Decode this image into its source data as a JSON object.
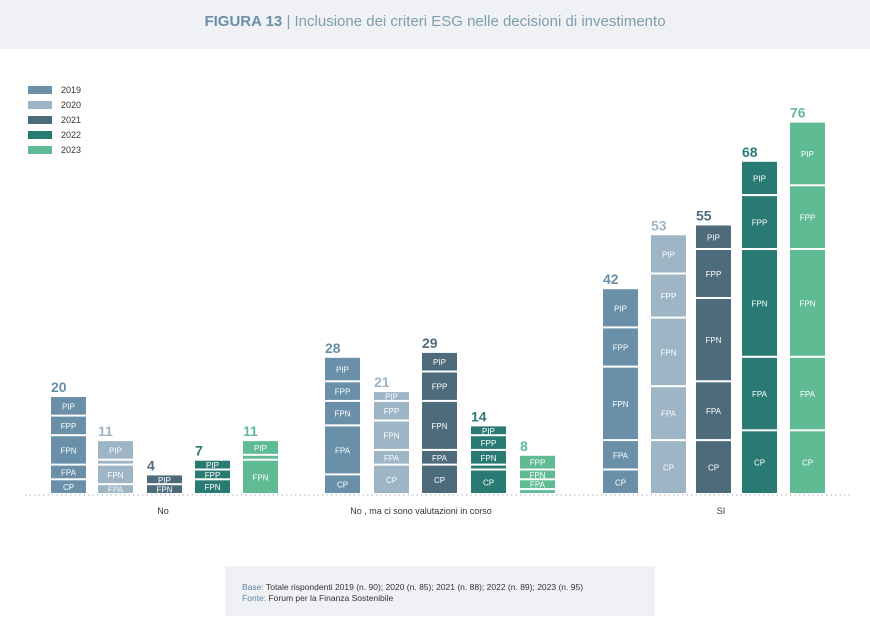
{
  "header": {
    "figure": "FIGURA 13",
    "separator": "|",
    "title": "Inclusione dei criteri ESG nelle decisioni di investimento"
  },
  "footer": {
    "base_label": "Base:",
    "base_text": "Totale rispondenti 2019 (n. 90); 2020 (n. 85); 2021 (n. 88); 2022 (n. 89); 2023 (n. 95)",
    "source_label": "Fonte:",
    "source_text": "Forum per la Finanza Sostenibile"
  },
  "chart_data": {
    "type": "bar",
    "stacked": true,
    "title": "Inclusione dei criteri ESG nelle decisioni di investimento",
    "legend_position": "top-left",
    "grid": false,
    "categories": [
      "No",
      "No , ma ci sono valutazioni in corso",
      "SI"
    ],
    "segments": [
      "CP",
      "FPA",
      "FPN",
      "FPP",
      "PIP"
    ],
    "series": [
      {
        "name": "2019",
        "color": "#6a8fa8",
        "totals": [
          20,
          28,
          42
        ],
        "stacks": [
          {
            "CP": 3,
            "FPA": 3,
            "FPN": 6,
            "FPP": 4,
            "PIP": 4
          },
          {
            "CP": 4,
            "FPA": 10,
            "FPN": 5,
            "FPP": 4,
            "PIP": 5
          },
          {
            "CP": 5,
            "FPA": 6,
            "FPN": 15,
            "FPP": 8,
            "PIP": 8
          }
        ]
      },
      {
        "name": "2020",
        "color": "#9db5c5",
        "totals": [
          11,
          21,
          53
        ],
        "stacks": [
          {
            "CP": 0,
            "FPA": 2,
            "FPN": 4,
            "FPP": 1,
            "PIP": 4
          },
          {
            "CP": 6,
            "FPA": 3,
            "FPN": 6,
            "FPP": 4,
            "PIP": 2
          },
          {
            "CP": 11,
            "FPA": 11,
            "FPN": 14,
            "FPP": 9,
            "PIP": 8
          }
        ]
      },
      {
        "name": "2021",
        "color": "#4e6b7b",
        "totals": [
          4,
          29,
          55
        ],
        "stacks": [
          {
            "CP": 0,
            "FPA": 0,
            "FPN": 2,
            "FPP": 0,
            "PIP": 2
          },
          {
            "CP": 6,
            "FPA": 3,
            "FPN": 10,
            "FPP": 6,
            "PIP": 4
          },
          {
            "CP": 11,
            "FPA": 12,
            "FPN": 17,
            "FPP": 10,
            "PIP": 5
          }
        ]
      },
      {
        "name": "2022",
        "color": "#2a7a74",
        "totals": [
          7,
          14,
          68
        ],
        "stacks": [
          {
            "CP": 0,
            "FPA": 0,
            "FPN": 3,
            "FPP": 2,
            "PIP": 2
          },
          {
            "CP": 5,
            "FPA": 1,
            "FPN": 3,
            "FPP": 3,
            "PIP": 2
          },
          {
            "CP": 13,
            "FPA": 15,
            "FPN": 22,
            "FPP": 11,
            "PIP": 7
          }
        ]
      },
      {
        "name": "2023",
        "color": "#5fbb94",
        "totals": [
          11,
          8,
          76
        ],
        "stacks": [
          {
            "CP": 0,
            "FPA": 0,
            "FPN": 7,
            "FPP": 1,
            "PIP": 3
          },
          {
            "CP": 1,
            "FPA": 2,
            "FPN": 2,
            "FPP": 3,
            "PIP": 0
          },
          {
            "CP": 13,
            "FPA": 15,
            "FPN": 22,
            "FPP": 13,
            "PIP": 13
          }
        ]
      }
    ]
  }
}
